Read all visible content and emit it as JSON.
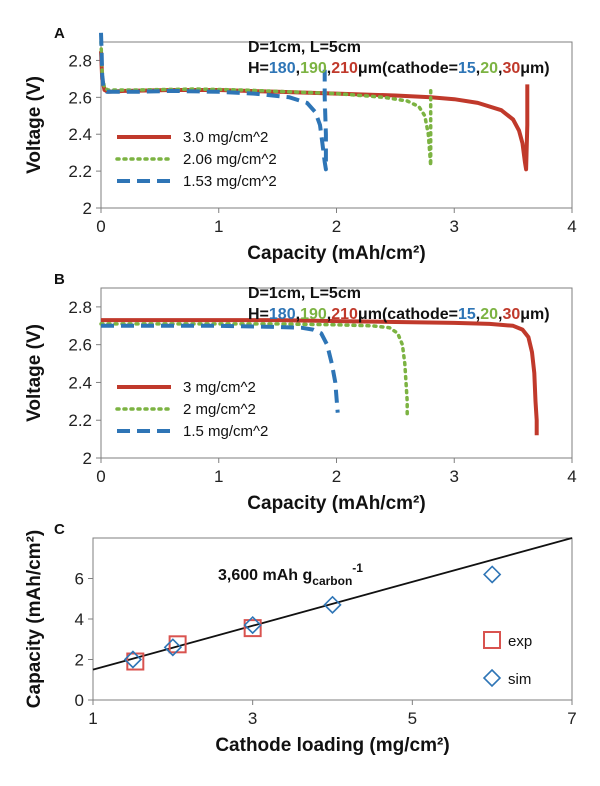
{
  "chart_data": [
    {
      "panel_label": "A",
      "type": "line",
      "xlabel": "Capacity (mAh/cm²)",
      "ylabel": "Voltage (V)",
      "xlim": [
        0,
        4
      ],
      "ylim": [
        2,
        2.9
      ],
      "xticks": [
        "0",
        "1",
        "2",
        "3",
        "4"
      ],
      "yticks": [
        "2",
        "2.2",
        "2.4",
        "2.6",
        "2.8"
      ],
      "grid": false,
      "legend_position": "bottom-left",
      "annotation_line1": "D=1cm, L=5cm",
      "annotation_line2": {
        "prefix": "H=",
        "h_values": [
          "180",
          "190",
          "210"
        ],
        "middle": "μm(cathode=",
        "c_values": [
          "15",
          "20",
          "30"
        ],
        "suffix": "μm)"
      },
      "series": [
        {
          "name": "3.0 mg/cm^2",
          "color": "#c0392b",
          "dash": "solid",
          "x": [
            0,
            0.01,
            0.03,
            0.06,
            0.2,
            0.6,
            1.0,
            1.5,
            2.0,
            2.5,
            2.8,
            3.0,
            3.2,
            3.4,
            3.5,
            3.55,
            3.58,
            3.6,
            3.61,
            3.62,
            3.62
          ],
          "y": [
            2.85,
            2.7,
            2.64,
            2.63,
            2.635,
            2.64,
            2.64,
            2.63,
            2.62,
            2.61,
            2.6,
            2.59,
            2.57,
            2.53,
            2.48,
            2.42,
            2.35,
            2.25,
            2.21,
            2.45,
            2.67
          ]
        },
        {
          "name": "2.06 mg/cm^2",
          "color": "#7cb342",
          "dash": "dot",
          "x": [
            0,
            0.01,
            0.03,
            0.06,
            0.3,
            0.8,
            1.2,
            1.6,
            2.0,
            2.4,
            2.6,
            2.7,
            2.75,
            2.78,
            2.8,
            2.8,
            2.8
          ],
          "y": [
            2.9,
            2.72,
            2.65,
            2.64,
            2.64,
            2.645,
            2.64,
            2.63,
            2.62,
            2.6,
            2.58,
            2.55,
            2.5,
            2.4,
            2.23,
            2.45,
            2.65
          ]
        },
        {
          "name": "1.53 mg/cm^2",
          "color": "#2e75b6",
          "dash": "dash",
          "x": [
            0,
            0.005,
            0.01,
            0.02,
            0.05,
            0.3,
            0.6,
            1.0,
            1.3,
            1.6,
            1.75,
            1.82,
            1.86,
            1.88,
            1.9,
            1.91,
            1.91,
            1.9,
            1.9
          ],
          "y": [
            2.95,
            2.85,
            2.72,
            2.66,
            2.63,
            2.63,
            2.635,
            2.63,
            2.62,
            2.6,
            2.57,
            2.52,
            2.45,
            2.35,
            2.25,
            2.21,
            2.4,
            2.6,
            2.75
          ]
        }
      ]
    },
    {
      "panel_label": "B",
      "type": "line",
      "xlabel": "Capacity (mAh/cm²)",
      "ylabel": "Voltage (V)",
      "xlim": [
        0,
        4
      ],
      "ylim": [
        2,
        2.9
      ],
      "xticks": [
        "0",
        "1",
        "2",
        "3",
        "4"
      ],
      "yticks": [
        "2",
        "2.2",
        "2.4",
        "2.6",
        "2.8"
      ],
      "grid": false,
      "legend_position": "bottom-left",
      "annotation_line1": "D=1cm, L=5cm",
      "annotation_line2": {
        "prefix": "H=",
        "h_values": [
          "180",
          "190",
          "210"
        ],
        "middle": "μm(cathode=",
        "c_values": [
          "15",
          "20",
          "30"
        ],
        "suffix": "μm)"
      },
      "series": [
        {
          "name": "3 mg/cm^2",
          "color": "#c0392b",
          "dash": "solid",
          "x": [
            0,
            0.5,
            1.0,
            1.5,
            2.0,
            2.5,
            3.0,
            3.3,
            3.5,
            3.58,
            3.63,
            3.66,
            3.68,
            3.69,
            3.7,
            3.7
          ],
          "y": [
            2.73,
            2.73,
            2.73,
            2.73,
            2.725,
            2.72,
            2.715,
            2.71,
            2.7,
            2.68,
            2.64,
            2.56,
            2.45,
            2.3,
            2.2,
            2.12
          ]
        },
        {
          "name": "2 mg/cm^2",
          "color": "#7cb342",
          "dash": "dot",
          "x": [
            0,
            0.5,
            1.0,
            1.5,
            2.0,
            2.3,
            2.45,
            2.52,
            2.56,
            2.58,
            2.59,
            2.6,
            2.6
          ],
          "y": [
            2.71,
            2.71,
            2.71,
            2.71,
            2.705,
            2.7,
            2.69,
            2.66,
            2.6,
            2.5,
            2.4,
            2.3,
            2.23
          ]
        },
        {
          "name": "1.5 mg/cm^2",
          "color": "#2e75b6",
          "dash": "dash",
          "x": [
            0,
            0.5,
            1.0,
            1.4,
            1.7,
            1.8,
            1.87,
            1.92,
            1.96,
            1.99,
            2.0,
            2.01
          ],
          "y": [
            2.7,
            2.7,
            2.7,
            2.695,
            2.69,
            2.68,
            2.66,
            2.6,
            2.5,
            2.4,
            2.32,
            2.24
          ]
        }
      ]
    },
    {
      "panel_label": "C",
      "type": "scatter",
      "xlabel": "Cathode loading (mg/cm²)",
      "ylabel": "Capacity (mAh/cm²)",
      "xlim": [
        1,
        7
      ],
      "ylim": [
        0,
        8
      ],
      "xticks": [
        "1",
        "3",
        "5",
        "7"
      ],
      "yticks": [
        "0",
        "2",
        "4",
        "6"
      ],
      "grid": false,
      "legend_position": "right",
      "annotation": {
        "text": "3,600 mAh g",
        "subscript": "carbon",
        "superscript": "-1"
      },
      "fit_line": {
        "x": [
          1,
          7
        ],
        "y": [
          1.5,
          8.0
        ],
        "color": "#111111"
      },
      "series": [
        {
          "name": "exp",
          "marker": "square",
          "color": "#d9534f",
          "x": [
            1.53,
            2.06,
            3.0
          ],
          "y": [
            1.9,
            2.75,
            3.55
          ]
        },
        {
          "name": "sim",
          "marker": "diamond",
          "color": "#2e75b6",
          "x": [
            1.5,
            2.0,
            3.0,
            4.0,
            6.0
          ],
          "y": [
            2.0,
            2.6,
            3.7,
            4.7,
            6.2
          ]
        }
      ]
    }
  ]
}
